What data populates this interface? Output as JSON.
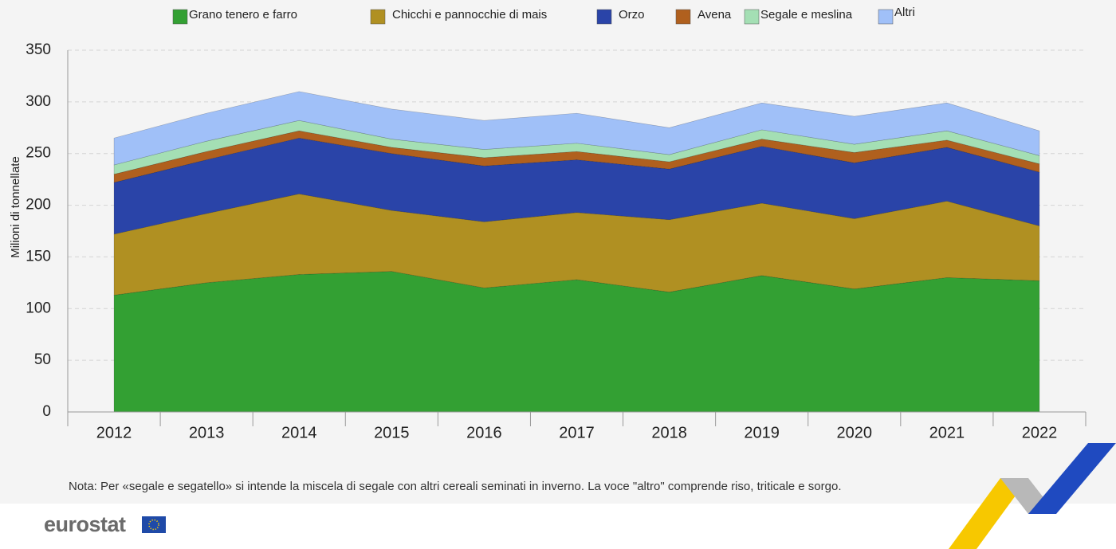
{
  "chart_data": {
    "type": "stacked-area",
    "y_label": "Milioni di tonnellate",
    "categories": [
      "2012",
      "2013",
      "2014",
      "2015",
      "2016",
      "2017",
      "2018",
      "2019",
      "2020",
      "2021",
      "2022"
    ],
    "series": [
      {
        "name": "Grano tenero e farro",
        "color": "#33a033",
        "values": [
          113,
          125,
          133,
          136,
          120,
          128,
          116,
          132,
          119,
          130,
          127
        ]
      },
      {
        "name": "Chicchi e pannocchie di mais",
        "color": "#b09022",
        "values": [
          59,
          67,
          78,
          59,
          64,
          65,
          70,
          70,
          68,
          74,
          53
        ]
      },
      {
        "name": "Orzo",
        "color": "#2a44a8",
        "values": [
          50,
          52,
          54,
          55,
          54,
          51,
          49,
          55,
          54,
          52,
          52
        ]
      },
      {
        "name": "Avena",
        "color": "#b0601e",
        "values": [
          8,
          8,
          7,
          6,
          8,
          8,
          7,
          7,
          10,
          7,
          8
        ]
      },
      {
        "name": "Segale e meslina",
        "color": "#a4dfb4",
        "values": [
          9,
          10,
          10,
          8,
          8,
          8,
          7,
          9,
          8,
          9,
          8
        ]
      },
      {
        "name": "Altri",
        "color": "#a0c0f8",
        "values": [
          26,
          27,
          28,
          29,
          28,
          29,
          26,
          26,
          27,
          27,
          24
        ]
      }
    ],
    "ylim": [
      0,
      350
    ],
    "yticks": [
      0,
      50,
      100,
      150,
      200,
      250,
      300,
      350
    ],
    "grid": true
  },
  "note": "Nota: Per «segale e segatello» si intende la miscela di segale con altri cereali seminati in inverno. La voce \"altro\" comprende riso, triticale e sorgo.",
  "logo": "eurostat"
}
